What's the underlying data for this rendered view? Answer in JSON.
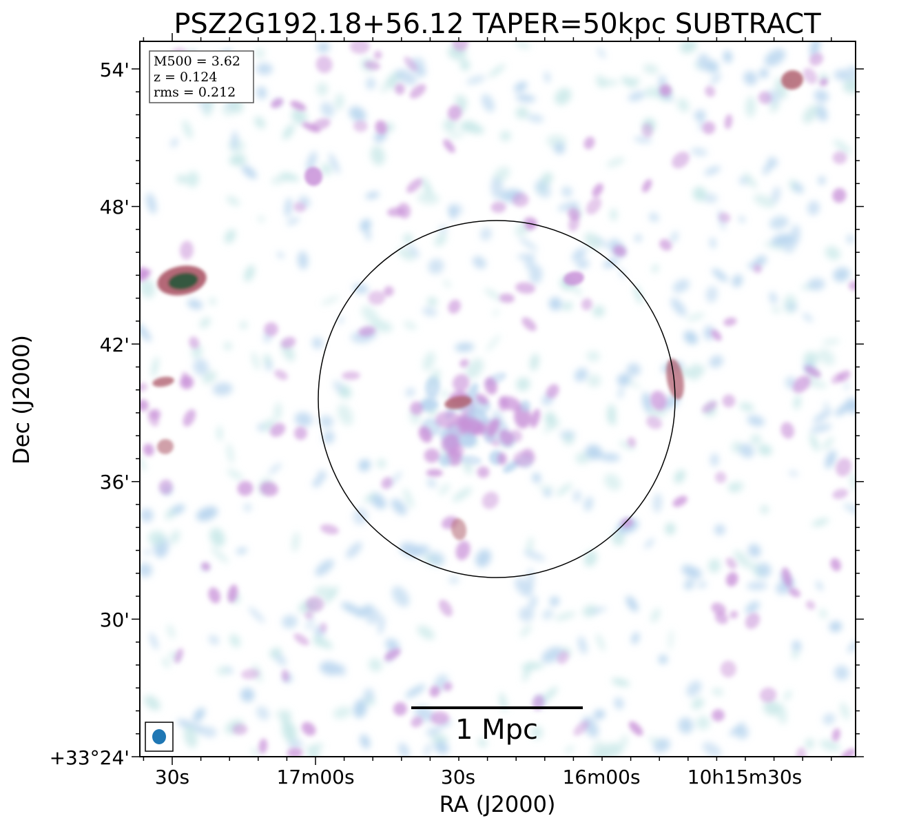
{
  "title": "PSZ2G192.18+56.12 TAPER=50kpc SUBTRACT",
  "info_box": {
    "mass": "M500 = 3.62",
    "redshift": "z = 0.124",
    "rms": "rms = 0.212"
  },
  "axes": {
    "xlabel": "RA (J2000)",
    "ylabel": "Dec (J2000)",
    "x_tick_labels": [
      "30s",
      "17m00s",
      "30s",
      "16m00s",
      "10h15m30s"
    ],
    "y_tick_labels": [
      "54'",
      "48'",
      "42'",
      "36'",
      "30'",
      "+33°24'"
    ]
  },
  "scale_bar": {
    "label": "1 Mpc"
  },
  "colors": {
    "weak_emission": "#b6d4ee",
    "faint_halo": "#c8e8e8",
    "mid_emission": "#c890d8",
    "strong_emission": "#b06070",
    "peak_emission": "#2f5a3e",
    "beam": "#1f77b4"
  }
}
